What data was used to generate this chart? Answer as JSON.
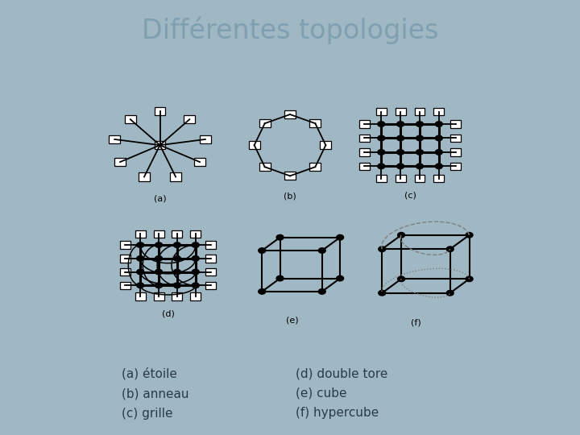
{
  "title": "Différentes topologies",
  "title_color": "#7fa0b0",
  "title_fontsize": 24,
  "bg_color": "#9fb8c3",
  "panel_bg": "#ffffff",
  "bottom_bar_color": "#6a9aaa",
  "text_left": "(a) étoile\n(b) anneau\n(c) grille",
  "text_right": "(d) double tore\n(e) cube\n(f) hypercube",
  "text_fontsize": 11,
  "text_color": "#2a3a4a",
  "label_fontsize": 8,
  "sep_color": "#7a9aaa"
}
